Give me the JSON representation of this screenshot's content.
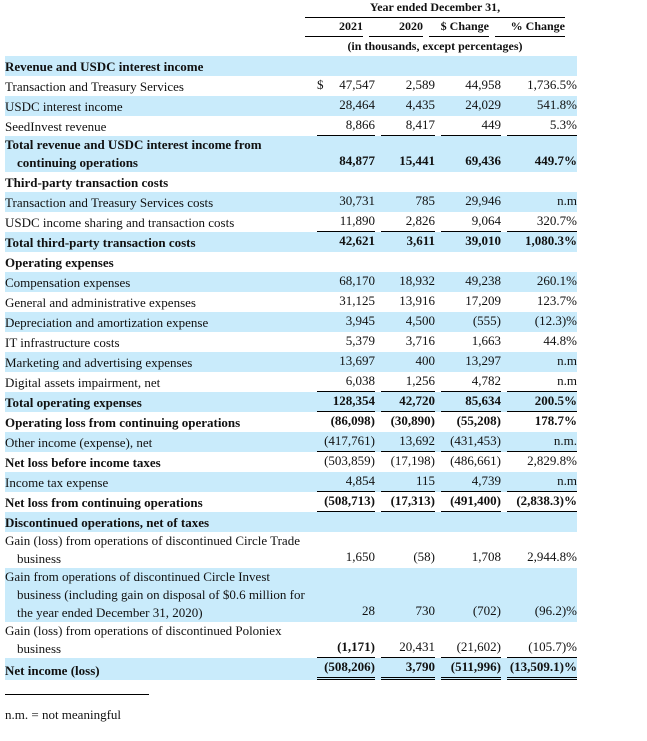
{
  "header": {
    "period": "Year ended December 31,",
    "columns": [
      "2021",
      "2020",
      "$ Change",
      "% Change"
    ],
    "units": "(in thousands, except percentages)"
  },
  "rows": [
    {
      "label": "Revenue and USDC interest income",
      "v2021": "",
      "v2020": "",
      "chg": "",
      "pct": "",
      "bold": true,
      "shade": true
    },
    {
      "label": "Transaction and Treasury Services",
      "currency": "$",
      "v2021": "47,547",
      "v2020": "2,589",
      "chg": "44,958",
      "pct": "1,736.5%"
    },
    {
      "label": "USDC interest income",
      "v2021": "28,464",
      "v2020": "4,435",
      "chg": "24,029",
      "pct": "541.8%",
      "shade": true
    },
    {
      "label": "SeedInvest revenue",
      "v2021": "8,866",
      "v2020": "8,417",
      "chg": "449",
      "pct": "5.3%",
      "line": true
    },
    {
      "label": "Total revenue and USDC interest income from continuing operations",
      "v2021": "84,877",
      "v2020": "15,441",
      "chg": "69,436",
      "pct": "449.7%",
      "bold": true,
      "shade": true
    },
    {
      "label": "Third-party transaction costs",
      "v2021": "",
      "v2020": "",
      "chg": "",
      "pct": "",
      "bold": true
    },
    {
      "label": "Transaction and Treasury Services costs",
      "v2021": "30,731",
      "v2020": "785",
      "chg": "29,946",
      "pct": "n.m",
      "shade": true
    },
    {
      "label": "USDC income sharing and transaction costs",
      "v2021": "11,890",
      "v2020": "2,826",
      "chg": "9,064",
      "pct": "320.7%",
      "line": true
    },
    {
      "label": "Total third-party transaction costs",
      "v2021": "42,621",
      "v2020": "3,611",
      "chg": "39,010",
      "pct": "1,080.3%",
      "bold": true,
      "shade": true
    },
    {
      "label": "Operating expenses",
      "v2021": "",
      "v2020": "",
      "chg": "",
      "pct": "",
      "bold": true
    },
    {
      "label": "Compensation expenses",
      "v2021": "68,170",
      "v2020": "18,932",
      "chg": "49,238",
      "pct": "260.1%",
      "shade": true
    },
    {
      "label": "General and administrative expenses",
      "v2021": "31,125",
      "v2020": "13,916",
      "chg": "17,209",
      "pct": "123.7%"
    },
    {
      "label": "Depreciation and amortization expense",
      "v2021": "3,945",
      "v2020": "4,500",
      "chg": "(555)",
      "pct": "(12.3)%",
      "shade": true
    },
    {
      "label": "IT infrastructure costs",
      "v2021": "5,379",
      "v2020": "3,716",
      "chg": "1,663",
      "pct": "44.8%"
    },
    {
      "label": "Marketing and advertising expenses",
      "v2021": "13,697",
      "v2020": "400",
      "chg": "13,297",
      "pct": "n.m",
      "shade": true
    },
    {
      "label": "Digital assets impairment, net",
      "v2021": "6,038",
      "v2020": "1,256",
      "chg": "4,782",
      "pct": "n.m",
      "line": true
    },
    {
      "label": "Total operating expenses",
      "v2021": "128,354",
      "v2020": "42,720",
      "chg": "85,634",
      "pct": "200.5%",
      "bold": true,
      "shade": true,
      "line": true
    },
    {
      "label": "Operating loss from continuing operations",
      "v2021": "(86,098)",
      "v2020": "(30,890)",
      "chg": "(55,208)",
      "pct": "178.7%",
      "bold": true
    },
    {
      "label": "Other income (expense), net",
      "v2021": "(417,761)",
      "v2020": "13,692",
      "chg": "(431,453)",
      "pct": "n.m.",
      "shade": true,
      "line": true
    },
    {
      "label": "Net loss before income taxes",
      "v2021": "(503,859)",
      "v2020": "(17,198)",
      "chg": "(486,661)",
      "pct": "2,829.8%",
      "boldlabel": true
    },
    {
      "label": "Income tax expense",
      "v2021": "4,854",
      "v2020": "115",
      "chg": "4,739",
      "pct": "n.m",
      "shade": true,
      "line": true
    },
    {
      "label": "Net loss from continuing operations",
      "v2021": "(508,713)",
      "v2020": "(17,313)",
      "chg": "(491,400)",
      "pct": "(2,838.3)%",
      "bold": true,
      "line": true
    },
    {
      "label": "Discontinued operations, net of taxes",
      "v2021": "",
      "v2020": "",
      "chg": "",
      "pct": "",
      "bold": true,
      "shade": true
    },
    {
      "label": "Gain (loss) from operations of discontinued Circle Trade business",
      "v2021": "1,650",
      "v2020": "(58)",
      "chg": "1,708",
      "pct": "2,944.8%"
    },
    {
      "label": "Gain from operations of discontinued Circle Invest business (including gain on disposal of $0.6 million for the year ended December 31, 2020)",
      "v2021": "28",
      "v2020": "730",
      "chg": "(702)",
      "pct": "(96.2)%",
      "shade": true
    },
    {
      "label": "Gain (loss) from operations of discontinued Poloniex business",
      "v2021": "(1,171)",
      "v2020": "20,431",
      "chg": "(21,602)",
      "pct": "(105.7)%",
      "line": true,
      "bold2021": true
    },
    {
      "label": "Net income (loss)",
      "v2021": "(508,206)",
      "v2020": "3,790",
      "chg": "(511,996)",
      "pct": "(13,509.1)%",
      "bold": true,
      "shade": true,
      "double": true
    }
  ],
  "footnote": "n.m. = not meaningful",
  "colors": {
    "row_shade": "#c9ebfb"
  }
}
